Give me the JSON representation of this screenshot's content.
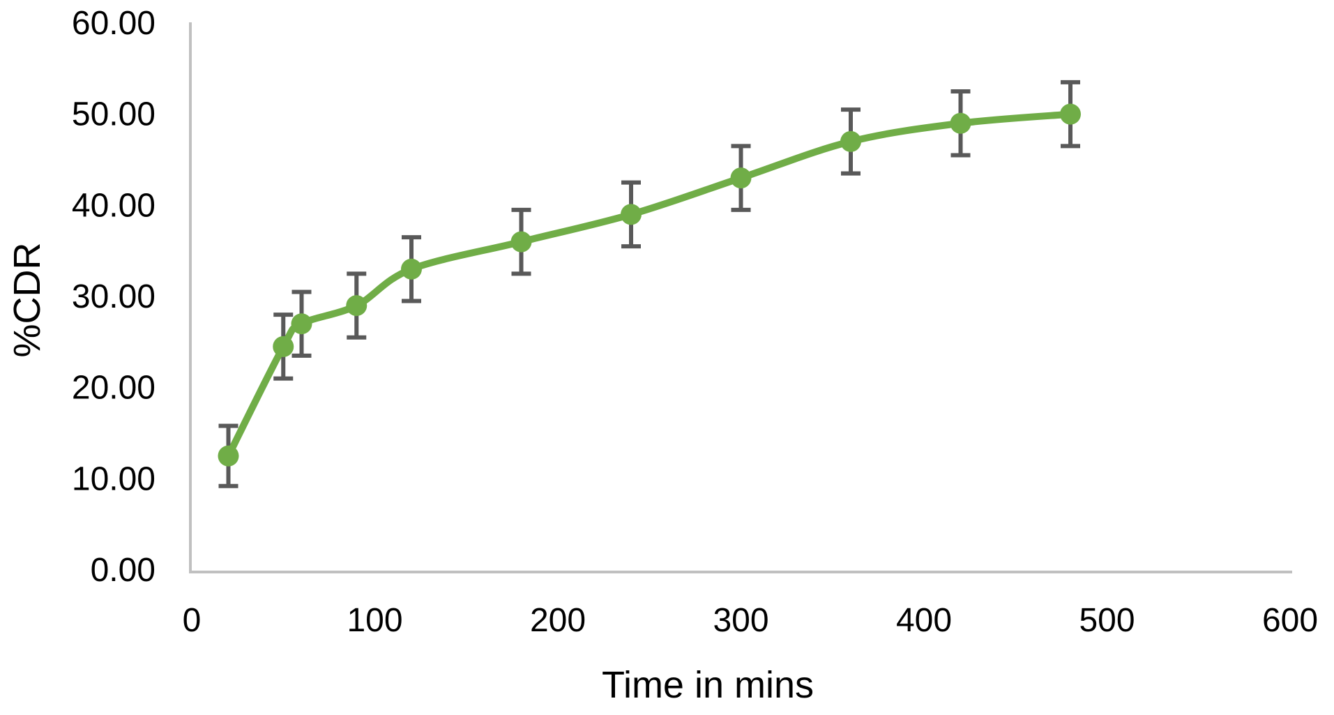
{
  "chart_data": {
    "type": "line",
    "title": "",
    "xlabel": "Time in mins",
    "ylabel": "%CDR",
    "xlim": [
      0,
      600
    ],
    "ylim": [
      0,
      60
    ],
    "xtick_step": 100,
    "ytick_step": 10,
    "ytick_decimals": 2,
    "xtick_decimals": 0,
    "grid": false,
    "legend_position": "none",
    "axis_color": "#C0C0C0",
    "text_color": "#000000",
    "series": [
      {
        "name": "%CDR",
        "line_color": "#70AD47",
        "marker": "circle",
        "marker_color": "#70AD47",
        "error_bar_color": "#595959",
        "x": [
          20,
          50,
          60,
          90,
          120,
          180,
          240,
          300,
          360,
          420,
          480
        ],
        "y": [
          12.5,
          24.5,
          27.0,
          29.0,
          33.0,
          36.0,
          39.0,
          43.0,
          47.0,
          49.0,
          50.0
        ],
        "y_err": [
          3.3,
          3.5,
          3.5,
          3.5,
          3.5,
          3.5,
          3.5,
          3.5,
          3.5,
          3.5,
          3.5
        ]
      }
    ]
  }
}
